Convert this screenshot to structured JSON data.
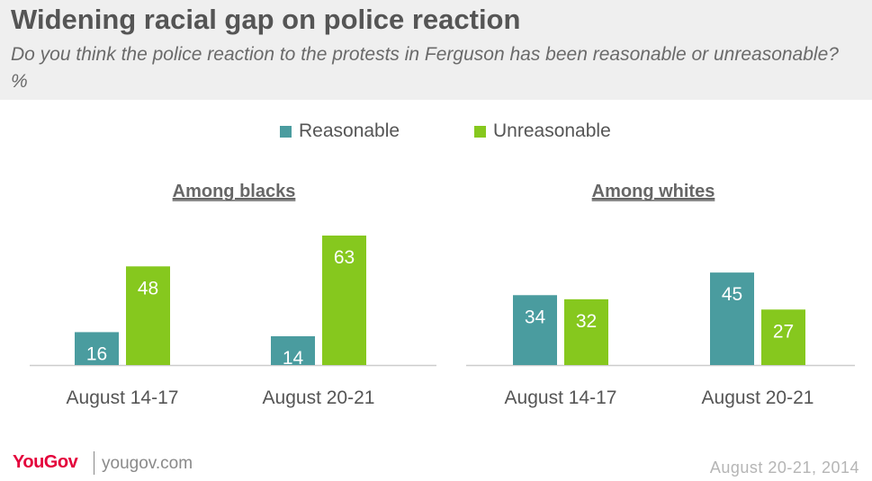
{
  "header": {
    "title": "Widening racial gap on police reaction",
    "subtitle": "Do you think the police reaction to the protests in Ferguson has been reasonable or unreasonable? %"
  },
  "legend": {
    "items": [
      {
        "label": "Reasonable",
        "color": "#4a9c9f"
      },
      {
        "label": "Unreasonable",
        "color": "#86c81e"
      }
    ]
  },
  "chart_data": [
    {
      "type": "bar",
      "title": "Among blacks",
      "categories": [
        "August 14-17",
        "August 20-21"
      ],
      "series": [
        {
          "name": "Reasonable",
          "values": [
            16,
            14
          ],
          "color": "#4a9c9f"
        },
        {
          "name": "Unreasonable",
          "values": [
            48,
            63
          ],
          "color": "#86c81e"
        }
      ],
      "ylim": [
        0,
        63
      ],
      "grid": false
    },
    {
      "type": "bar",
      "title": "Among whites",
      "categories": [
        "August 14-17",
        "August 20-21"
      ],
      "series": [
        {
          "name": "Reasonable",
          "values": [
            34,
            45
          ],
          "color": "#4a9c9f"
        },
        {
          "name": "Unreasonable",
          "values": [
            32,
            27
          ],
          "color": "#86c81e"
        }
      ],
      "ylim": [
        0,
        63
      ],
      "grid": false
    }
  ],
  "footer": {
    "logo": "YouGov",
    "site": "yougov.com",
    "date": "August 20-21, 2014"
  }
}
